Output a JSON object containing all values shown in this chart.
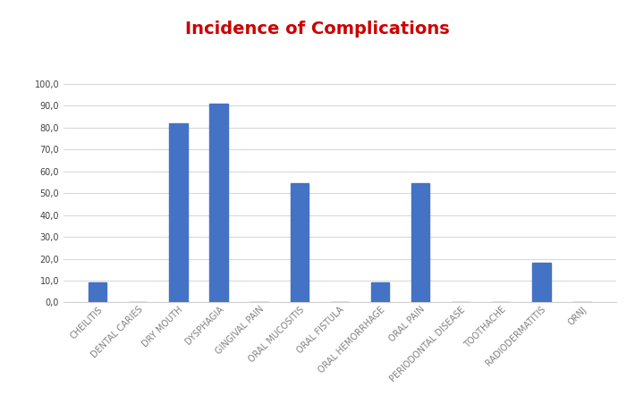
{
  "title": "Incidence of Complications",
  "title_color": "#cc0000",
  "categories": [
    "CHEILITIS",
    "DENTAL CARIES",
    "DRY MOUTH",
    "DYSPHAGIA",
    "GINGIVAL PAIN",
    "ORAL MUCOSITIS",
    "ORAL FISTULA",
    "ORAL HEMORRHAGE",
    "ORAL PAIN",
    "PERIODONTAL DISEASE",
    "TOOTHACHE",
    "RADIODERMATITIS",
    "ORNJ"
  ],
  "values": [
    9.0,
    0.0,
    81.8,
    90.9,
    0.0,
    54.5,
    0.0,
    9.0,
    54.5,
    0.0,
    0.0,
    18.2,
    0.0
  ],
  "bar_color": "#4472c4",
  "ylim": [
    0,
    100
  ],
  "yticks": [
    0.0,
    10.0,
    20.0,
    30.0,
    40.0,
    50.0,
    60.0,
    70.0,
    80.0,
    90.0,
    100.0
  ],
  "ytick_labels": [
    "0,0",
    "10,0",
    "20,0",
    "30,0",
    "40,0",
    "50,0",
    "60,0",
    "70,0",
    "80,0",
    "90,0",
    "100,0"
  ],
  "grid_color": "#d9d9d9",
  "background_color": "#ffffff",
  "bar_width": 0.45,
  "title_fontsize": 14,
  "tick_fontsize": 7.0,
  "xtick_color": "#808080",
  "ytick_color": "#404040",
  "border_color": "#d0d0d0"
}
